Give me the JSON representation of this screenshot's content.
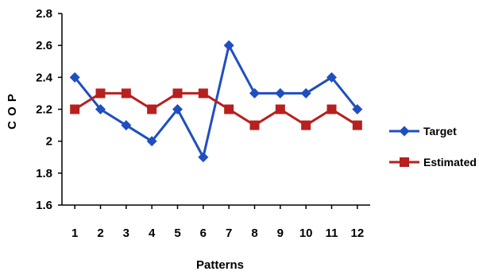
{
  "chart_data": {
    "type": "line",
    "title": "",
    "xlabel": "Patterns",
    "ylabel": "C O P",
    "x": [
      "1",
      "2",
      "3",
      "4",
      "5",
      "6",
      "7",
      "8",
      "9",
      "10",
      "11",
      "12"
    ],
    "ylim": [
      1.6,
      2.8
    ],
    "yticks": [
      "1.6",
      "1.8",
      "2",
      "2.2",
      "2.4",
      "2.6",
      "2.8"
    ],
    "grid": false,
    "legend_position": "right",
    "series": [
      {
        "name": "Target",
        "color": "#1f4fbf",
        "marker": "diamond",
        "values": [
          2.4,
          2.2,
          2.1,
          2.0,
          2.2,
          1.9,
          2.6,
          2.3,
          2.3,
          2.3,
          2.4,
          2.2
        ]
      },
      {
        "name": "Estimated",
        "color": "#b81f1f",
        "marker": "square",
        "values": [
          2.2,
          2.3,
          2.3,
          2.2,
          2.3,
          2.3,
          2.2,
          2.1,
          2.2,
          2.1,
          2.2,
          2.1
        ]
      }
    ]
  }
}
